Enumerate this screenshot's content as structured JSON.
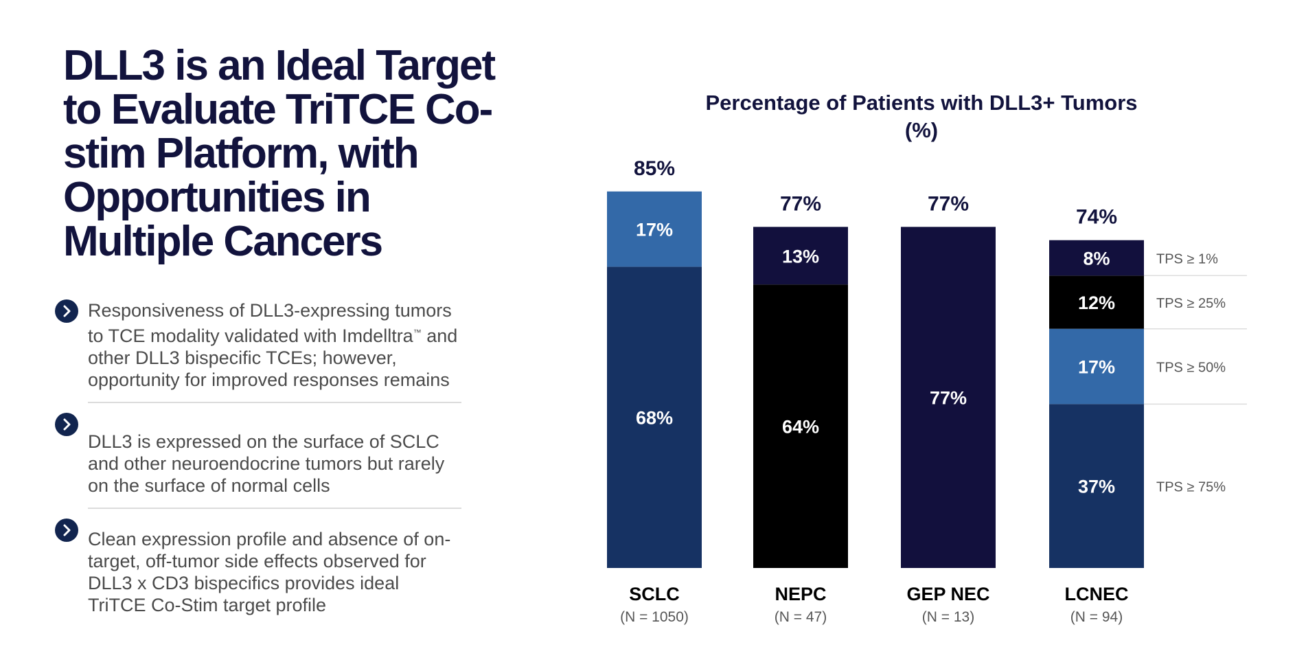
{
  "slide": {
    "title": "DLL3 is an Ideal Target to Evaluate TriTCE Co-stim Platform, with Opportunities in Multiple Cancers",
    "bullets": [
      {
        "text_before_tm": "Responsiveness of DLL3-expressing tumors to TCE modality validated with Imdelltra",
        "tm": "™",
        "text_after_tm": " and other DLL3 bispecific TCEs; however, opportunity for improved responses remains"
      },
      {
        "text": "DLL3 is expressed on the surface of SCLC and other neuroendocrine tumors but rarely on the surface of normal cells"
      },
      {
        "text": "Clean expression profile and absence of on-target, off-tumor side effects observed for DLL3 x CD3 bispecifics provides ideal TriTCE Co-Stim target profile"
      }
    ],
    "icons": {
      "bullet": "chevron-right-icon"
    }
  },
  "chart_data": {
    "type": "bar",
    "stacked": true,
    "title_line1": "Percentage of Patients with DLL3+ Tumors",
    "title_line2": "(%)",
    "ylim": [
      0,
      100
    ],
    "xlabel": "",
    "ylabel": "",
    "categories": [
      "SCLC",
      "NEPC",
      "GEP NEC",
      "LCNEC"
    ],
    "sample_sizes": [
      "(N = 1050)",
      "(N = 47)",
      "(N = 13)",
      "(N = 94)"
    ],
    "totals": [
      85,
      77,
      77,
      74
    ],
    "total_labels": [
      "85%",
      "77%",
      "77%",
      "74%"
    ],
    "bars": [
      {
        "category": "SCLC",
        "segments": [
          {
            "value": 68,
            "label": "68%",
            "color": "#163263"
          },
          {
            "value": 17,
            "label": "17%",
            "color": "#3369a8"
          }
        ]
      },
      {
        "category": "NEPC",
        "segments": [
          {
            "value": 64,
            "label": "64%",
            "color": "#000000"
          },
          {
            "value": 13,
            "label": "13%",
            "color": "#12103d"
          }
        ]
      },
      {
        "category": "GEP NEC",
        "segments": [
          {
            "value": 77,
            "label": "77%",
            "color": "#12103d"
          }
        ]
      },
      {
        "category": "LCNEC",
        "segments": [
          {
            "value": 37,
            "label": "37%",
            "color": "#163263"
          },
          {
            "value": 17,
            "label": "17%",
            "color": "#3369a8"
          },
          {
            "value": 12,
            "label": "12%",
            "color": "#000000"
          },
          {
            "value": 8,
            "label": "8%",
            "color": "#12103d"
          }
        ]
      }
    ],
    "tps_legend": [
      "TPS ≥ 1%",
      "TPS ≥ 25%",
      "TPS ≥ 50%",
      "TPS ≥ 75%"
    ],
    "colors": {
      "title": "#12133d",
      "total_label": "#12133d",
      "segment_label": "#ffffff",
      "category_label": "#000000",
      "sample_size": "#555555",
      "legend_text": "#555555",
      "legend_rule": "#dddddd"
    }
  }
}
